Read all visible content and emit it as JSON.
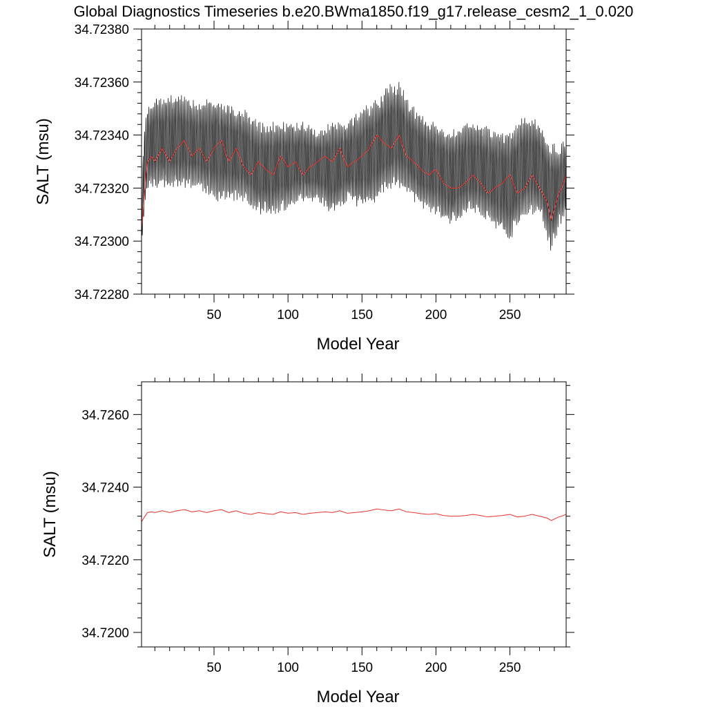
{
  "title": "Global Diagnostics Timeseries b.e20.BWma1850.f19_g17.release_cesm2_1_0.020",
  "chart_data": [
    {
      "type": "line",
      "xlabel": "Model Year",
      "ylabel": "SALT (msu)",
      "xlim": [
        1,
        288
      ],
      "ylim": [
        34.7228,
        34.7238
      ],
      "xticks": [
        50,
        100,
        150,
        200,
        250
      ],
      "xtick_labels": [
        "50",
        "100",
        "150",
        "200",
        "250"
      ],
      "yticks": [
        34.7228,
        34.723,
        34.7232,
        34.7234,
        34.7236,
        34.7238
      ],
      "ytick_labels": [
        "34.72280",
        "34.72300",
        "34.72320",
        "34.72340",
        "34.72360",
        "34.72380"
      ],
      "grid": false,
      "series": [
        {
          "kind": "monthly",
          "color": "#000000",
          "samples_per_year": 12,
          "x_start": 1,
          "envelope": {
            "x": [
              1,
              3,
              5,
              10,
              20,
              30,
              40,
              50,
              60,
              70,
              80,
              90,
              100,
              110,
              120,
              130,
              140,
              150,
              160,
              170,
              175,
              180,
              190,
              200,
              210,
              220,
              230,
              240,
              250,
              260,
              270,
              278,
              283,
              288
            ],
            "low": [
              34.72295,
              34.7231,
              34.7232,
              34.7232,
              34.7232,
              34.7232,
              34.7232,
              34.72315,
              34.72315,
              34.72315,
              34.7231,
              34.7231,
              34.72312,
              34.72315,
              34.72315,
              34.7231,
              34.72315,
              34.72312,
              34.72315,
              34.7232,
              34.7232,
              34.72318,
              34.72312,
              34.7231,
              34.72305,
              34.7231,
              34.7231,
              34.72305,
              34.723,
              34.7231,
              34.7231,
              34.72295,
              34.72305,
              34.7231
            ],
            "high": [
              34.7232,
              34.72345,
              34.7235,
              34.72355,
              34.72355,
              34.72355,
              34.72352,
              34.72355,
              34.72352,
              34.7235,
              34.72345,
              34.72345,
              34.72345,
              34.72345,
              34.72342,
              34.72345,
              34.72345,
              34.7235,
              34.72355,
              34.7236,
              34.7236,
              34.72355,
              34.72348,
              34.72345,
              34.72342,
              34.72345,
              34.72345,
              34.72342,
              34.72342,
              34.72348,
              34.72345,
              34.72338,
              34.72335,
              34.7234
            ]
          }
        },
        {
          "kind": "annual",
          "color": "#e8302a",
          "x": [
            1,
            2,
            3,
            4,
            5,
            8,
            10,
            15,
            20,
            25,
            30,
            35,
            40,
            45,
            50,
            55,
            60,
            65,
            70,
            75,
            80,
            85,
            90,
            95,
            100,
            105,
            110,
            115,
            120,
            125,
            130,
            135,
            140,
            145,
            150,
            155,
            160,
            165,
            170,
            175,
            180,
            185,
            190,
            195,
            200,
            205,
            210,
            215,
            220,
            225,
            230,
            235,
            240,
            245,
            250,
            255,
            260,
            265,
            270,
            275,
            278,
            280,
            283,
            285,
            288
          ],
          "y": [
            34.72305,
            34.7231,
            34.72318,
            34.72325,
            34.7233,
            34.72332,
            34.7233,
            34.72335,
            34.7233,
            34.72335,
            34.72338,
            34.72332,
            34.72335,
            34.7233,
            34.72335,
            34.72338,
            34.7233,
            34.72335,
            34.72328,
            34.72325,
            34.7233,
            34.72327,
            34.72325,
            34.72332,
            34.72328,
            34.7233,
            34.72325,
            34.72328,
            34.7233,
            34.72332,
            34.7233,
            34.72335,
            34.72328,
            34.7233,
            34.72332,
            34.72335,
            34.7234,
            34.72337,
            34.72335,
            34.7234,
            34.72332,
            34.7233,
            34.72327,
            34.72325,
            34.72327,
            34.72322,
            34.7232,
            34.7232,
            34.72322,
            34.72325,
            34.72322,
            34.72318,
            34.7232,
            34.72322,
            34.72325,
            34.72318,
            34.7232,
            34.72325,
            34.7232,
            34.72315,
            34.72308,
            34.72312,
            34.72318,
            34.7232,
            34.72325
          ]
        }
      ]
    },
    {
      "type": "line",
      "xlabel": "Model Year",
      "ylabel": "SALT (msu)",
      "xlim": [
        1,
        288
      ],
      "ylim": [
        34.7196,
        34.7269
      ],
      "xticks": [
        50,
        100,
        150,
        200,
        250
      ],
      "xtick_labels": [
        "50",
        "100",
        "150",
        "200",
        "250"
      ],
      "yticks": [
        34.72,
        34.722,
        34.724,
        34.726
      ],
      "ytick_labels": [
        "34.7200",
        "34.7220",
        "34.7240",
        "34.7260"
      ],
      "grid": false,
      "series": [
        {
          "kind": "annual",
          "color": "#e8302a",
          "x": [
            1,
            3,
            5,
            8,
            10,
            15,
            20,
            25,
            30,
            35,
            40,
            45,
            50,
            55,
            60,
            65,
            70,
            75,
            80,
            85,
            90,
            95,
            100,
            105,
            110,
            115,
            120,
            125,
            130,
            135,
            140,
            145,
            150,
            155,
            160,
            165,
            170,
            175,
            180,
            185,
            190,
            195,
            200,
            205,
            210,
            215,
            220,
            225,
            230,
            235,
            240,
            245,
            250,
            255,
            260,
            265,
            270,
            275,
            278,
            280,
            283,
            285,
            288
          ],
          "y": [
            34.72305,
            34.72318,
            34.7233,
            34.72332,
            34.7233,
            34.72335,
            34.7233,
            34.72335,
            34.72338,
            34.72332,
            34.72335,
            34.7233,
            34.72335,
            34.72338,
            34.7233,
            34.72335,
            34.72328,
            34.72325,
            34.7233,
            34.72327,
            34.72325,
            34.72332,
            34.72328,
            34.7233,
            34.72325,
            34.72328,
            34.7233,
            34.72332,
            34.7233,
            34.72335,
            34.72328,
            34.7233,
            34.72332,
            34.72335,
            34.7234,
            34.72337,
            34.72335,
            34.7234,
            34.72332,
            34.7233,
            34.72327,
            34.72325,
            34.72327,
            34.72322,
            34.7232,
            34.7232,
            34.72322,
            34.72325,
            34.72322,
            34.72318,
            34.7232,
            34.72322,
            34.72325,
            34.72318,
            34.7232,
            34.72325,
            34.7232,
            34.72315,
            34.72308,
            34.72312,
            34.72318,
            34.7232,
            34.72325
          ]
        }
      ]
    }
  ]
}
